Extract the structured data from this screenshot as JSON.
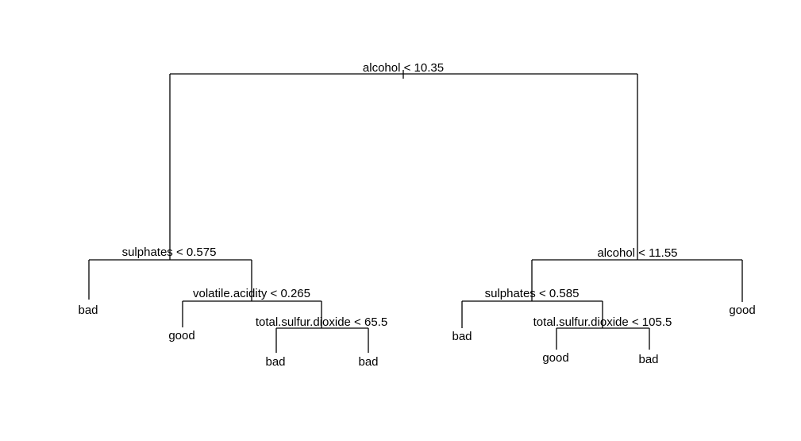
{
  "tree": {
    "root": {
      "split": "alcohol < 10.35",
      "left": {
        "split": "sulphates < 0.575",
        "left": {
          "leaf": "bad"
        },
        "right": {
          "split": "volatile.acidity < 0.265",
          "left": {
            "leaf": "good"
          },
          "right": {
            "split": "total.sulfur.dioxide < 65.5",
            "left": {
              "leaf": "bad"
            },
            "right": {
              "leaf": "bad"
            }
          }
        }
      },
      "right": {
        "split": "alcohol < 11.55",
        "left": {
          "split": "sulphates < 0.585",
          "left": {
            "leaf": "bad"
          },
          "right": {
            "split": "total.sulfur.dioxide < 105.5",
            "left": {
              "leaf": "good"
            },
            "right": {
              "leaf": "bad"
            }
          }
        },
        "right": {
          "leaf": "good"
        }
      }
    }
  },
  "colors": {
    "line": "#000000",
    "text": "#000000",
    "background": "#ffffff"
  }
}
